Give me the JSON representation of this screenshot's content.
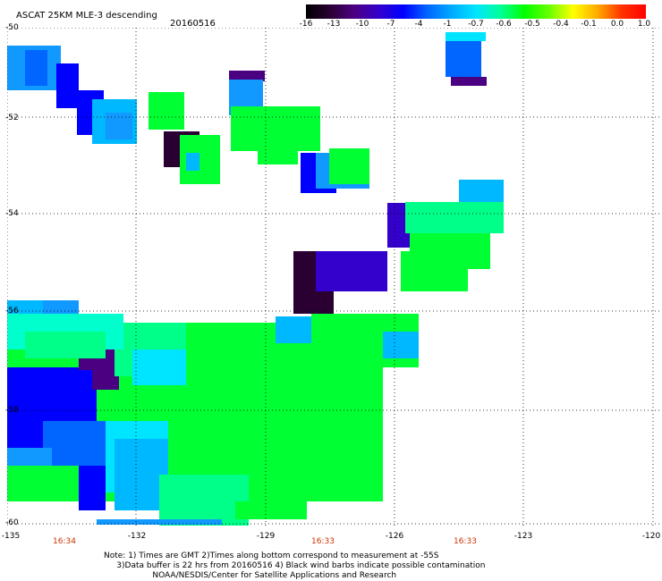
{
  "title": "ASCAT 25KM MLE-3 descending",
  "date": "20160516",
  "colorbar": {
    "ticks": [
      "-16",
      "-13",
      "-10",
      "-7",
      "-4",
      "-1",
      "-0.7",
      "-0.6",
      "-0.5",
      "-0.4",
      "-0.1",
      "0.0",
      "1.0"
    ],
    "colors": [
      "#000000",
      "#2a0033",
      "#4b0082",
      "#3300cc",
      "#0000ff",
      "#0066ff",
      "#00aaff",
      "#00e5ff",
      "#00ff99",
      "#00ff00",
      "#66ff00",
      "#ffff00",
      "#ffaa00",
      "#ff3300",
      "#ff0000"
    ]
  },
  "map": {
    "lat_labels": [
      "-50",
      "-52",
      "-54",
      "-56",
      "-58",
      "-60"
    ],
    "lon_labels": [
      "-135",
      "-132",
      "-129",
      "-126",
      "-123",
      "-120"
    ],
    "time_labels": [
      "16:34",
      "16:33",
      "16:33"
    ],
    "palette": {
      "darkpurple": "#2a0033",
      "purple": "#4b0082",
      "indigo": "#3300cc",
      "blue": "#0000ff",
      "medblue": "#0066ff",
      "skyblue": "#1199ff",
      "lightblue": "#00b8ff",
      "cyan": "#00e5ff",
      "aqua": "#00ffcc",
      "seagreen": "#00ff88",
      "green": "#00ff33"
    }
  },
  "notes": [
    "Note: 1) Times are GMT 2)Times along bottom correspond to measurement at -55S",
    "     3)Data buffer is 22 hrs from 20160516 4) Black wind barbs indicate possible contamination",
    "                   NOAA/NESDIS/Center for Satellite Applications and Research"
  ]
}
